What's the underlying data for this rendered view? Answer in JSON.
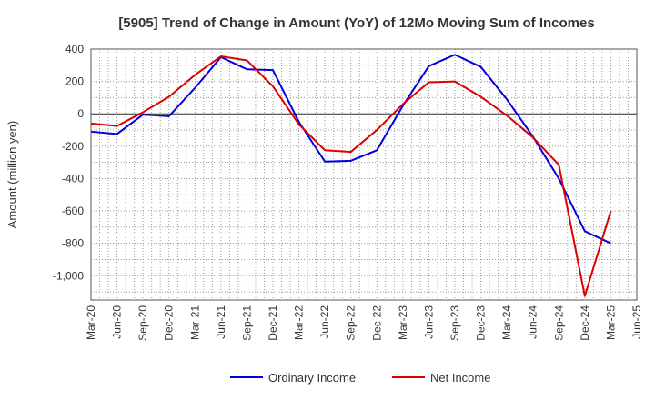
{
  "chart_data": {
    "type": "line",
    "title": "[5905]  Trend of Change in Amount (YoY) of 12Mo Moving Sum of Incomes",
    "xlabel": "",
    "ylabel": "Amount (million yen)",
    "ylim": [
      -1150,
      400
    ],
    "yticks": [
      400,
      200,
      0,
      -200,
      -400,
      -600,
      -800,
      -1000
    ],
    "ytick_labels": [
      "400",
      "200",
      "0",
      "-200",
      "-400",
      "-600",
      "-800",
      "-1,000"
    ],
    "categories": [
      "Mar-20",
      "Jun-20",
      "Sep-20",
      "Dec-20",
      "Mar-21",
      "Jun-21",
      "Sep-21",
      "Dec-21",
      "Mar-22",
      "Jun-22",
      "Sep-22",
      "Dec-22",
      "Mar-23",
      "Jun-23",
      "Sep-23",
      "Dec-23",
      "Mar-24",
      "Jun-24",
      "Sep-24",
      "Dec-24",
      "Mar-25",
      "Jun-25"
    ],
    "grid": true,
    "legend_position": "bottom",
    "series": [
      {
        "name": "Ordinary Income",
        "color": "#0000dd",
        "values": [
          -110,
          -125,
          -5,
          -15,
          160,
          350,
          275,
          270,
          -50,
          -295,
          -290,
          -225,
          50,
          295,
          365,
          290,
          90,
          -140,
          -400,
          -725,
          -800,
          null
        ]
      },
      {
        "name": "Net Income",
        "color": "#dd0000",
        "values": [
          -60,
          -75,
          10,
          105,
          240,
          355,
          330,
          170,
          -65,
          -225,
          -235,
          -100,
          60,
          195,
          200,
          105,
          -10,
          -145,
          -315,
          -1125,
          -600,
          null
        ]
      }
    ]
  }
}
